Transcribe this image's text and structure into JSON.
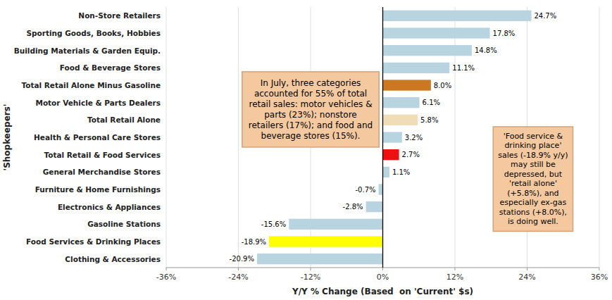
{
  "chart_data": {
    "type": "bar",
    "orientation": "horizontal",
    "categories": [
      "Clothing & Accessories",
      "Food Services & Drinking Places",
      "Gasoline Stations",
      "Electronics & Appliances",
      "Furniture & Home Furnishings",
      "General Merchandise Stores",
      "Total Retail & Food Services",
      "Health & Personal Care Stores",
      "Total Retail Alone",
      "Motor Vehicle & Parts Dealers",
      "Total Retail Alone Minus Gasoline",
      "Food & Beverage Stores",
      "Building Materials & Garden Equip.",
      "Sporting Goods, Books, Hobbies",
      "Non-Store Retailers"
    ],
    "values": [
      -20.9,
      -18.9,
      -15.6,
      -2.8,
      -0.7,
      1.1,
      2.7,
      3.2,
      5.8,
      6.1,
      8.0,
      11.1,
      14.8,
      17.8,
      24.7
    ],
    "value_labels": [
      "-20.9%",
      "-18.9%",
      "-15.6%",
      "-2.8%",
      "-0.7%",
      "1.1%",
      "2.7%",
      "3.2%",
      "5.8%",
      "6.1%",
      "8.0%",
      "11.1%",
      "14.8%",
      "17.8%",
      "24.7%"
    ],
    "colors": [
      "#b8d4e0",
      "#ffff00",
      "#b8d4e0",
      "#b8d4e0",
      "#b8d4e0",
      "#b8d4e0",
      "#ee1111",
      "#b8d4e0",
      "#f0ddb8",
      "#b8d4e0",
      "#cc7722",
      "#b8d4e0",
      "#b8d4e0",
      "#b8d4e0",
      "#b8d4e0"
    ],
    "data_labels": true,
    "xlabel": "Y/Y % Change (Based  on 'Current' $s)",
    "ylabel": "'Shopkeepers'",
    "xlim": [
      -36,
      36
    ],
    "xticks": [
      {
        "value": -36,
        "label": "-36%"
      },
      {
        "value": -24,
        "label": "-24%"
      },
      {
        "value": -12,
        "label": "-12%"
      },
      {
        "value": 0,
        "label": "0%"
      },
      {
        "value": 12,
        "label": "12%"
      },
      {
        "value": 24,
        "label": "24%"
      },
      {
        "value": 36,
        "label": "36%"
      }
    ],
    "grid": true,
    "annotations": [
      "In July, three categories\naccounted for 55% of total\nretail sales: motor vehicles &\nparts (23%); nonstore\nretailers (17%); and food and\nbeverage stores (15%).",
      "'Food service &\ndrinking place'\nsales (-18.9% y/y)\nmay still be\ndepressed, but\n'retail alone'\n(+5.8%), and\nespecially ex-gas\nstations (+8.0%),\nis doing well."
    ]
  }
}
